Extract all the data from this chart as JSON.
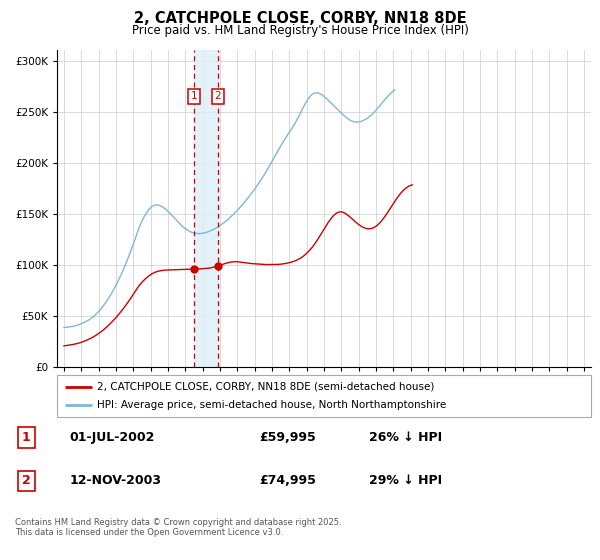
{
  "title": "2, CATCHPOLE CLOSE, CORBY, NN18 8DE",
  "subtitle": "Price paid vs. HM Land Registry's House Price Index (HPI)",
  "legend_line1": "2, CATCHPOLE CLOSE, CORBY, NN18 8DE (semi-detached house)",
  "legend_line2": "HPI: Average price, semi-detached house, North Northamptonshire",
  "footer": "Contains HM Land Registry data © Crown copyright and database right 2025.\nThis data is licensed under the Open Government Licence v3.0.",
  "transactions": [
    {
      "num": 1,
      "date": "01-JUL-2002",
      "price": 59995,
      "pct": "26% ↓ HPI",
      "x": 2002.5
    },
    {
      "num": 2,
      "date": "12-NOV-2003",
      "price": 74995,
      "pct": "29% ↓ HPI",
      "x": 2003.87
    }
  ],
  "hpi_color": "#7db8d8",
  "price_color": "#cc0000",
  "vertical_line_color": "#cc0000",
  "vertical_fill_color": "#ddeef8",
  "marker_box_color": "#cc0000",
  "ylim": [
    0,
    310000
  ],
  "xlim_start": 1994.6,
  "xlim_end": 2025.4,
  "yticks": [
    0,
    50000,
    100000,
    150000,
    200000,
    250000,
    300000
  ],
  "xticks": [
    1995,
    1996,
    1997,
    1998,
    1999,
    2000,
    2001,
    2002,
    2003,
    2004,
    2005,
    2006,
    2007,
    2008,
    2009,
    2010,
    2011,
    2012,
    2013,
    2014,
    2015,
    2016,
    2017,
    2018,
    2019,
    2020,
    2021,
    2022,
    2023,
    2024,
    2025
  ],
  "hpi_y_monthly": [
    38500,
    38600,
    38700,
    38900,
    39100,
    39300,
    39600,
    39900,
    40200,
    40600,
    41100,
    41600,
    42200,
    42800,
    43500,
    44200,
    44900,
    45700,
    46600,
    47600,
    48700,
    49900,
    51200,
    52600,
    54100,
    55700,
    57400,
    59200,
    61100,
    63100,
    65200,
    67400,
    69700,
    72100,
    74600,
    77200,
    79900,
    82700,
    85600,
    88600,
    91700,
    94900,
    98200,
    101600,
    105100,
    108700,
    112400,
    116200,
    120100,
    124100,
    128200,
    132400,
    136200,
    139600,
    142800,
    145700,
    148200,
    150500,
    152600,
    154400,
    155900,
    157100,
    157900,
    158400,
    158600,
    158500,
    158200,
    157600,
    156800,
    155900,
    154800,
    153600,
    152300,
    150900,
    149400,
    147900,
    146400,
    144800,
    143300,
    141800,
    140400,
    139000,
    137700,
    136500,
    135400,
    134400,
    133500,
    132700,
    132000,
    131500,
    131100,
    130800,
    130600,
    130500,
    130500,
    130600,
    130800,
    131100,
    131500,
    131900,
    132400,
    133000,
    133600,
    134300,
    135000,
    135800,
    136600,
    137500,
    138400,
    139400,
    140400,
    141500,
    142600,
    143800,
    145000,
    146300,
    147600,
    149000,
    150400,
    151800,
    153300,
    154800,
    156400,
    158000,
    159600,
    161300,
    163000,
    164700,
    166500,
    168300,
    170200,
    172100,
    174100,
    176100,
    178100,
    180200,
    182300,
    184500,
    186700,
    189000,
    191300,
    193700,
    196100,
    198600,
    201200,
    203800,
    206400,
    208900,
    211400,
    213900,
    216300,
    218700,
    221000,
    223300,
    225500,
    227700,
    229800,
    231900,
    234100,
    236300,
    238700,
    241300,
    244000,
    246800,
    249600,
    252500,
    255200,
    257800,
    260200,
    262400,
    264300,
    265900,
    267100,
    267900,
    268300,
    268400,
    268200,
    267700,
    267000,
    266000,
    264900,
    263700,
    262400,
    261100,
    259700,
    258300,
    256900,
    255500,
    254100,
    252700,
    251300,
    249900,
    248500,
    247200,
    245900,
    244700,
    243600,
    242600,
    241700,
    241000,
    240400,
    240000,
    239800,
    239700,
    239900,
    240200,
    240600,
    241200,
    241900,
    242700,
    243600,
    244600,
    245800,
    247000,
    248400,
    249800,
    251400,
    253100,
    254800,
    256500,
    258200,
    259900,
    261600,
    263200,
    264800,
    266300,
    267700,
    269000,
    270200,
    271400
  ],
  "price_y_monthly": [
    20500,
    20700,
    20900,
    21100,
    21300,
    21500,
    21800,
    22100,
    22400,
    22700,
    23100,
    23500,
    24000,
    24500,
    25000,
    25600,
    26200,
    26800,
    27500,
    28200,
    29000,
    29800,
    30700,
    31600,
    32600,
    33600,
    34700,
    35800,
    37000,
    38200,
    39500,
    40800,
    42200,
    43600,
    45100,
    46600,
    48200,
    49800,
    51500,
    53200,
    55000,
    56800,
    58700,
    60600,
    62600,
    64600,
    66700,
    68800,
    71000,
    73200,
    75500,
    77800,
    79600,
    81200,
    82800,
    84300,
    85700,
    87000,
    88200,
    89300,
    90300,
    91200,
    91900,
    92600,
    93100,
    93600,
    93900,
    94200,
    94400,
    94600,
    94700,
    94800,
    94900,
    94900,
    95000,
    95000,
    95100,
    95100,
    95200,
    95200,
    95300,
    95300,
    95400,
    95400,
    95500,
    95500,
    95600,
    95600,
    95700,
    95700,
    95800,
    95800,
    95900,
    95900,
    96000,
    96000,
    96100,
    96100,
    96200,
    96400,
    96600,
    96800,
    97100,
    97400,
    97700,
    98100,
    98500,
    99000,
    99500,
    100000,
    100500,
    101000,
    101400,
    101800,
    102200,
    102500,
    102700,
    102900,
    103000,
    103000,
    102900,
    102800,
    102600,
    102400,
    102200,
    102000,
    101800,
    101600,
    101400,
    101300,
    101100,
    101000,
    100900,
    100800,
    100700,
    100600,
    100500,
    100400,
    100300,
    100300,
    100200,
    100200,
    100100,
    100100,
    100100,
    100100,
    100100,
    100200,
    100300,
    100400,
    100500,
    100700,
    100900,
    101100,
    101400,
    101700,
    102000,
    102400,
    102800,
    103300,
    103800,
    104400,
    105100,
    105900,
    106700,
    107700,
    108700,
    109900,
    111200,
    112600,
    114100,
    115700,
    117400,
    119300,
    121300,
    123400,
    125600,
    127900,
    130200,
    132500,
    134900,
    137200,
    139400,
    141600,
    143600,
    145500,
    147200,
    148700,
    149900,
    150800,
    151500,
    151800,
    151800,
    151500,
    150900,
    150100,
    149100,
    148000,
    146800,
    145500,
    144200,
    142900,
    141700,
    140500,
    139400,
    138400,
    137500,
    136700,
    136100,
    135600,
    135300,
    135200,
    135300,
    135600,
    136100,
    136800,
    137700,
    138800,
    140100,
    141600,
    143300,
    145100,
    147000,
    149000,
    151100,
    153300,
    155500,
    157700,
    159900,
    162100,
    164200,
    166200,
    168100,
    169900,
    171500,
    173000,
    174300,
    175400,
    176400,
    177200,
    177800,
    178300
  ]
}
